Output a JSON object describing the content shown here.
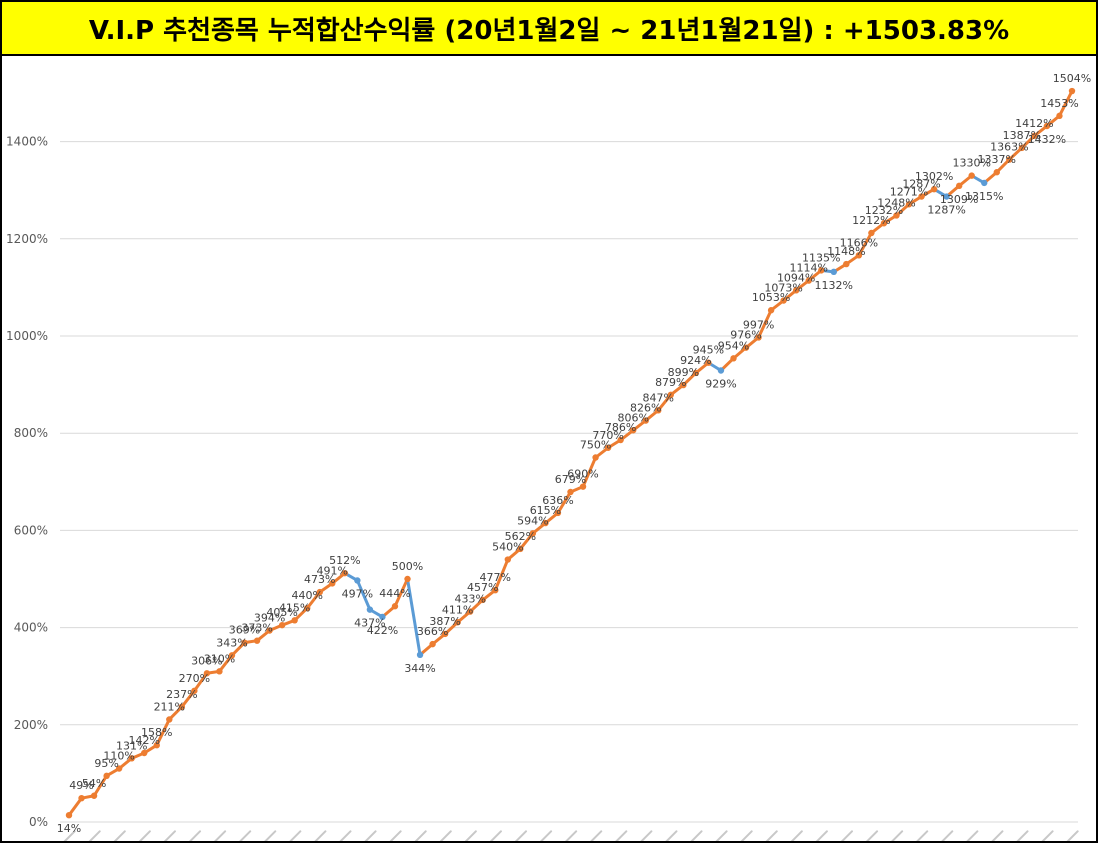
{
  "header": {
    "title": "V.I.P 추천종목 누적합산수익률 (20년1월2일 ~ 21년1월21일) : +1503.83%"
  },
  "colors": {
    "title_background": "#ffff00",
    "up_segment": "#ed7d31",
    "down_segment": "#5b9bd5",
    "gridlines": "#d9d9d9"
  },
  "chart_data": {
    "type": "line",
    "title": "V.I.P 추천종목 누적합산수익률 (20년1월2일 ~ 21년1월21일) : +1503.83%",
    "xlabel": "",
    "ylabel": "",
    "ylim": [
      0,
      1500
    ],
    "yticks": [
      "0%",
      "200%",
      "400%",
      "600%",
      "800%",
      "1000%",
      "1200%",
      "1400%"
    ],
    "grid": true,
    "legend": "none",
    "segment_coloring": "rising segments orange, falling segments blue",
    "series": [
      {
        "values": [
          14,
          49,
          54,
          95,
          110,
          131,
          142,
          158,
          211,
          237,
          270,
          306,
          310,
          343,
          369,
          373,
          394,
          405,
          415,
          440,
          473,
          491,
          512,
          497,
          437,
          422,
          444,
          500,
          344,
          366,
          387,
          411,
          433,
          457,
          477,
          540,
          562,
          594,
          615,
          636,
          679,
          690,
          750,
          770,
          786,
          806,
          826,
          847,
          879,
          899,
          924,
          945,
          929,
          954,
          976,
          997,
          1053,
          1073,
          1094,
          1114,
          1135,
          1132,
          1148,
          1166,
          1212,
          1232,
          1248,
          1271,
          1287,
          1302,
          1287,
          1309,
          1330,
          1315,
          1337,
          1363,
          1387,
          1412,
          1432,
          1453,
          1504
        ],
        "labels": [
          "14%",
          "49%",
          "54%",
          "95%",
          "110%",
          "131%",
          "142%",
          "158%",
          "211%",
          "237%",
          "270%",
          "306%",
          "310%",
          "343%",
          "369%",
          "373%",
          "394%",
          "405%",
          "415%",
          "440%",
          "473%",
          "491%",
          "512%",
          "497%",
          "437%",
          "422%",
          "444%",
          "500%",
          "344%",
          "366%",
          "387%",
          "411%",
          "433%",
          "457%",
          "477%",
          "540%",
          "562%",
          "594%",
          "615%",
          "636%",
          "679%",
          "690%",
          "750%",
          "770%",
          "786%",
          "806%",
          "826%",
          "847%",
          "879%",
          "899%",
          "924%",
          "945%",
          "929%",
          "954%",
          "976%",
          "997%",
          "1053%",
          "1073%",
          "1094%",
          "1114%",
          "1135%",
          "1132%",
          "1148%",
          "1166%",
          "1212%",
          "1232%",
          "1248%",
          "1271%",
          "1287%",
          "1302%",
          "1287%",
          "1309%",
          "1330%",
          "1315%",
          "1337%",
          "1363%",
          "1387%",
          "1412%",
          "1432%",
          "1453%",
          "1504%"
        ],
        "label_below": [
          1,
          0,
          0,
          0,
          0,
          0,
          0,
          0,
          0,
          0,
          0,
          0,
          0,
          0,
          0,
          0,
          0,
          0,
          0,
          0,
          0,
          0,
          0,
          1,
          1,
          1,
          0,
          0,
          1,
          0,
          0,
          0,
          0,
          0,
          0,
          0,
          0,
          0,
          0,
          0,
          0,
          0,
          0,
          0,
          0,
          0,
          0,
          0,
          0,
          0,
          0,
          0,
          1,
          0,
          0,
          0,
          0,
          0,
          0,
          0,
          0,
          1,
          0,
          0,
          0,
          0,
          0,
          0,
          0,
          0,
          1,
          1,
          0,
          1,
          0,
          0,
          0,
          0,
          1,
          0,
          0
        ]
      }
    ]
  }
}
